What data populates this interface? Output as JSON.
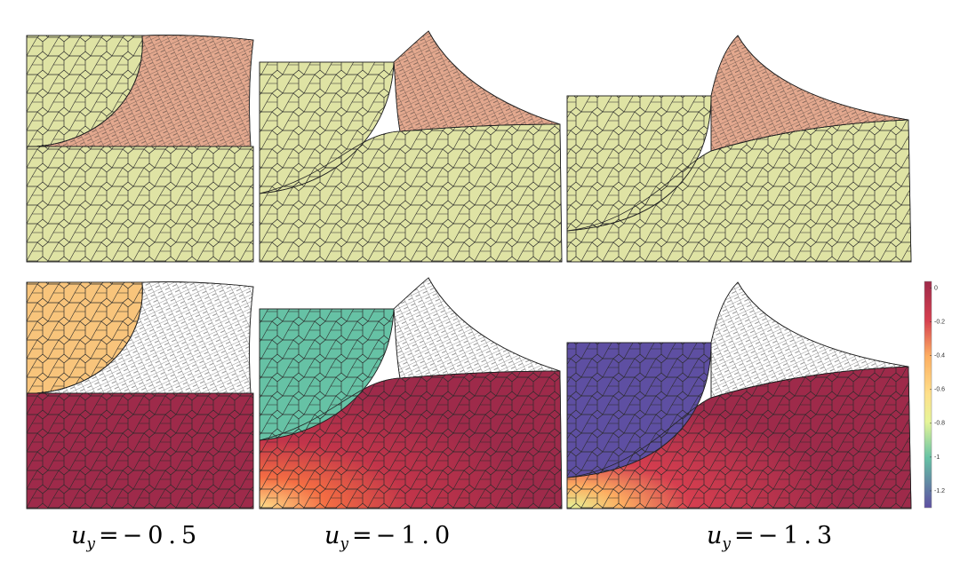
{
  "captions": [
    {
      "symbol": "u",
      "subscript": "y",
      "relation": "=",
      "value": "−0.5"
    },
    {
      "symbol": "u",
      "subscript": "y",
      "relation": "=",
      "value": "−1.0"
    },
    {
      "symbol": "u",
      "subscript": "y",
      "relation": "=",
      "value": "−1.3"
    }
  ],
  "colorbar": {
    "range": [
      -1.3,
      0.04
    ],
    "ticks": [
      0,
      -0.2,
      -0.4,
      -0.6,
      -0.8,
      -1,
      -1.2
    ]
  }
}
